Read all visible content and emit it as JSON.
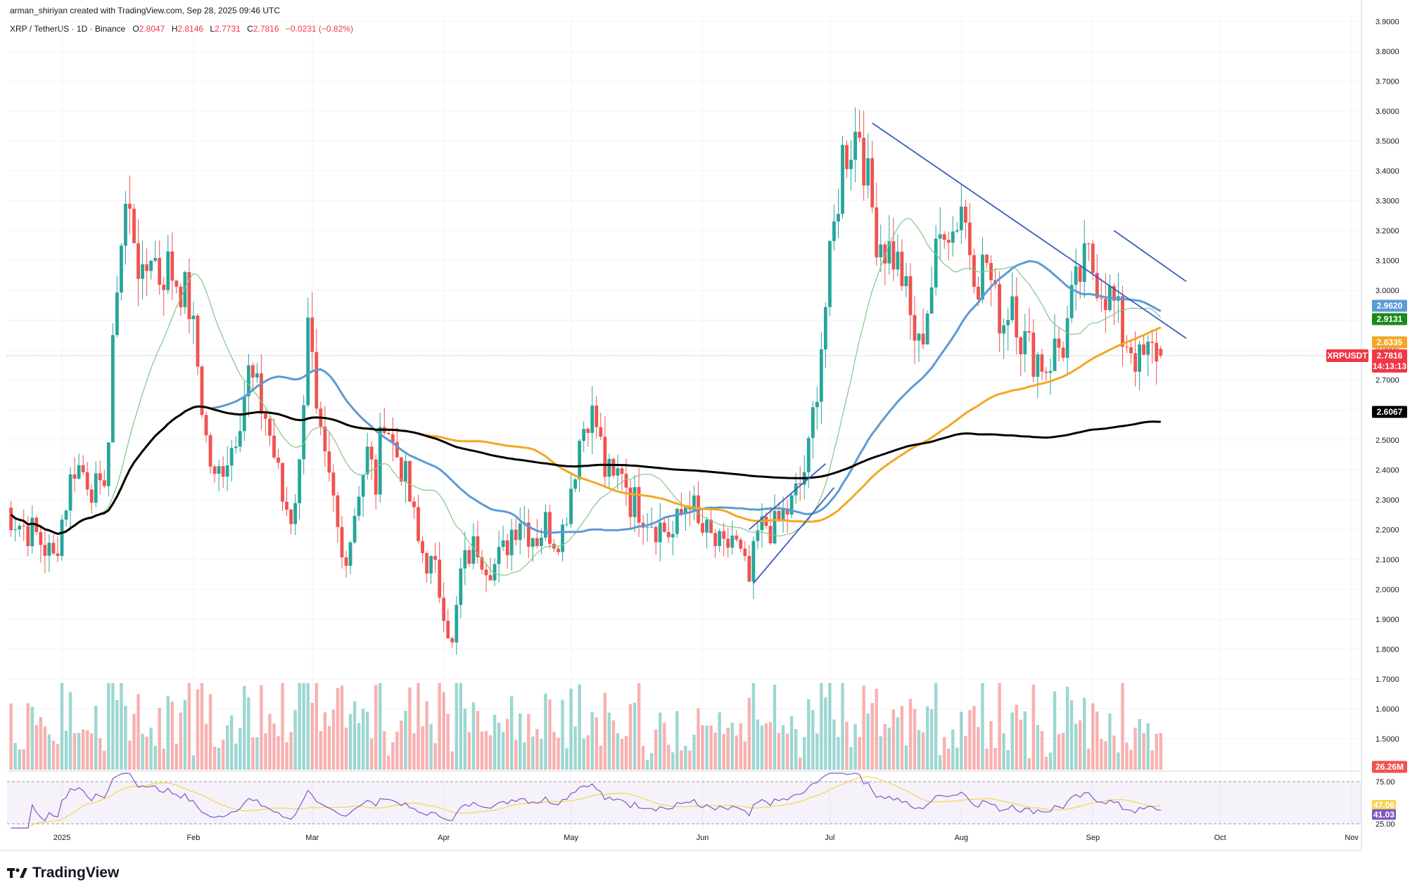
{
  "header": {
    "credit": "arman_shiriyan created with TradingView.com, Sep 28, 2025 09:46 UTC",
    "symbol": "XRP / TetherUS · 1D · Binance",
    "open_label": "O",
    "open": "2.8047",
    "high_label": "H",
    "high": "2.8146",
    "low_label": "L",
    "low": "2.7731",
    "close_label": "C",
    "close": "2.7816",
    "change": "−0.0231 (−0.82%)"
  },
  "brand": {
    "name": "TradingView",
    "icon": "tradingview-logo-icon"
  },
  "colors": {
    "up": "#26a69a",
    "down": "#ef5350",
    "ma20": "#81c784",
    "ma50": "#5b9bd5",
    "ma100": "#f5a623",
    "ma200": "#000000",
    "trend": "#3b5bc4",
    "rsi": "#7e57c2",
    "rsi_ma": "#f7d54c"
  },
  "chart_data": {
    "type": "candlestick",
    "symbol": "XRPUSDT",
    "ylim": [
      1.42,
      3.92
    ],
    "y_ticks": [
      "3.9000",
      "3.8000",
      "3.7000",
      "3.6000",
      "3.5000",
      "3.4000",
      "3.3000",
      "3.2000",
      "3.1000",
      "3.0000",
      "2.9000",
      "2.8000",
      "2.7000",
      "2.6000",
      "2.5000",
      "2.4000",
      "2.3000",
      "2.2000",
      "2.1000",
      "2.0000",
      "1.9000",
      "1.8000",
      "1.7000",
      "1.6000",
      "1.5000"
    ],
    "x_labels": [
      {
        "label": "2025",
        "day": 0
      },
      {
        "label": "Feb",
        "day": 31
      },
      {
        "label": "Mar",
        "day": 59
      },
      {
        "label": "Apr",
        "day": 90
      },
      {
        "label": "May",
        "day": 120
      },
      {
        "label": "Jun",
        "day": 151
      },
      {
        "label": "Jul",
        "day": 181
      },
      {
        "label": "Aug",
        "day": 212
      },
      {
        "label": "Sep",
        "day": 243
      },
      {
        "label": "Oct",
        "day": 273
      },
      {
        "label": "Nov",
        "day": 304
      }
    ],
    "closes_anchor": [
      [
        -14,
        2.28
      ],
      [
        -10,
        2.22
      ],
      [
        -6,
        2.18
      ],
      [
        -2,
        2.1
      ],
      [
        1,
        2.3
      ],
      [
        3,
        2.42
      ],
      [
        6,
        2.38
      ],
      [
        9,
        2.3
      ],
      [
        11,
        2.5
      ],
      [
        13,
        3.05
      ],
      [
        15,
        3.28
      ],
      [
        17,
        3.2
      ],
      [
        19,
        3.0
      ],
      [
        21,
        3.15
      ],
      [
        23,
        3.05
      ],
      [
        25,
        3.08
      ],
      [
        28,
        3.02
      ],
      [
        30,
        2.95
      ],
      [
        32,
        2.75
      ],
      [
        34,
        2.5
      ],
      [
        36,
        2.35
      ],
      [
        38,
        2.43
      ],
      [
        40,
        2.48
      ],
      [
        42,
        2.6
      ],
      [
        44,
        2.72
      ],
      [
        46,
        2.65
      ],
      [
        48,
        2.58
      ],
      [
        50,
        2.45
      ],
      [
        52,
        2.3
      ],
      [
        54,
        2.25
      ],
      [
        56,
        2.4
      ],
      [
        58,
        2.95
      ],
      [
        60,
        2.55
      ],
      [
        62,
        2.4
      ],
      [
        64,
        2.28
      ],
      [
        66,
        2.1
      ],
      [
        68,
        2.18
      ],
      [
        70,
        2.35
      ],
      [
        72,
        2.45
      ],
      [
        74,
        2.35
      ],
      [
        76,
        2.6
      ],
      [
        78,
        2.48
      ],
      [
        80,
        2.42
      ],
      [
        82,
        2.3
      ],
      [
        84,
        2.15
      ],
      [
        86,
        2.1
      ],
      [
        88,
        2.05
      ],
      [
        90,
        1.95
      ],
      [
        92,
        1.8
      ],
      [
        94,
        2.05
      ],
      [
        96,
        2.12
      ],
      [
        98,
        2.15
      ],
      [
        100,
        2.1
      ],
      [
        102,
        2.08
      ],
      [
        104,
        2.12
      ],
      [
        106,
        2.2
      ],
      [
        108,
        2.25
      ],
      [
        110,
        2.2
      ],
      [
        112,
        2.18
      ],
      [
        114,
        2.22
      ],
      [
        116,
        2.18
      ],
      [
        118,
        2.2
      ],
      [
        120,
        2.35
      ],
      [
        122,
        2.5
      ],
      [
        124,
        2.6
      ],
      [
        126,
        2.55
      ],
      [
        128,
        2.4
      ],
      [
        130,
        2.35
      ],
      [
        132,
        2.42
      ],
      [
        134,
        2.3
      ],
      [
        136,
        2.28
      ],
      [
        138,
        2.25
      ],
      [
        140,
        2.22
      ],
      [
        142,
        2.2
      ],
      [
        144,
        2.18
      ],
      [
        146,
        2.25
      ],
      [
        148,
        2.32
      ],
      [
        150,
        2.2
      ],
      [
        152,
        2.18
      ],
      [
        154,
        2.15
      ],
      [
        156,
        2.12
      ],
      [
        158,
        2.18
      ],
      [
        160,
        2.1
      ],
      [
        162,
        2.02
      ],
      [
        164,
        2.18
      ],
      [
        166,
        2.22
      ],
      [
        168,
        2.2
      ],
      [
        170,
        2.25
      ],
      [
        172,
        2.28
      ],
      [
        174,
        2.35
      ],
      [
        176,
        2.45
      ],
      [
        178,
        2.7
      ],
      [
        180,
        2.95
      ],
      [
        182,
        3.2
      ],
      [
        184,
        3.45
      ],
      [
        186,
        3.5
      ],
      [
        188,
        3.55
      ],
      [
        190,
        3.35
      ],
      [
        192,
        3.2
      ],
      [
        194,
        3.15
      ],
      [
        196,
        3.12
      ],
      [
        198,
        3.05
      ],
      [
        200,
        2.9
      ],
      [
        202,
        2.8
      ],
      [
        204,
        2.95
      ],
      [
        206,
        3.1
      ],
      [
        208,
        3.25
      ],
      [
        210,
        3.2
      ],
      [
        212,
        3.3
      ],
      [
        214,
        3.15
      ],
      [
        216,
        3.05
      ],
      [
        218,
        3.1
      ],
      [
        220,
        2.95
      ],
      [
        222,
        2.9
      ],
      [
        224,
        3.0
      ],
      [
        226,
        2.85
      ],
      [
        228,
        2.8
      ],
      [
        230,
        2.78
      ],
      [
        232,
        2.75
      ],
      [
        234,
        2.8
      ],
      [
        236,
        2.82
      ],
      [
        238,
        2.95
      ],
      [
        240,
        3.05
      ],
      [
        242,
        3.1
      ],
      [
        244,
        3.05
      ],
      [
        246,
        3.0
      ],
      [
        248,
        2.95
      ],
      [
        250,
        2.85
      ],
      [
        252,
        2.82
      ],
      [
        254,
        2.75
      ],
      [
        256,
        2.78
      ],
      [
        258,
        2.8
      ],
      [
        259,
        2.78
      ]
    ],
    "last_day": 259,
    "volume_ylim_note": "volume pane, bars colored by candle direction",
    "price_badges": [
      {
        "value": "2.9620",
        "name": "ma50-badge",
        "color": "#5b9bd5"
      },
      {
        "value": "2.9131",
        "name": "ma20-badge",
        "color": "#1b8a1b"
      },
      {
        "value": "2.8335",
        "name": "ma100-badge",
        "color": "#f5a623"
      },
      {
        "value": "2.6067",
        "name": "ma200-badge",
        "color": "#000000"
      }
    ],
    "current_price": {
      "symbol": "XRPUSDT",
      "value": "2.7816",
      "countdown": "14:13:13"
    },
    "volume_label": "26.26M",
    "rsi": {
      "levels": [
        "75.00",
        "25.00"
      ],
      "value": "41.03",
      "ma_value": "47.06",
      "ylim": [
        25,
        75
      ]
    },
    "trendlines": [
      {
        "name": "descending-resistance",
        "from": [
          191,
          3.56
        ],
        "to": [
          265,
          2.84
        ]
      },
      {
        "name": "upper-channel-line",
        "from": [
          248,
          3.2
        ],
        "to": [
          265,
          3.03
        ]
      },
      {
        "name": "ascending-channel-upper",
        "from": [
          162,
          2.2
        ],
        "to": [
          180,
          2.42
        ]
      },
      {
        "name": "ascending-channel-lower",
        "from": [
          163,
          2.02
        ],
        "to": [
          182,
          2.34
        ]
      }
    ]
  }
}
